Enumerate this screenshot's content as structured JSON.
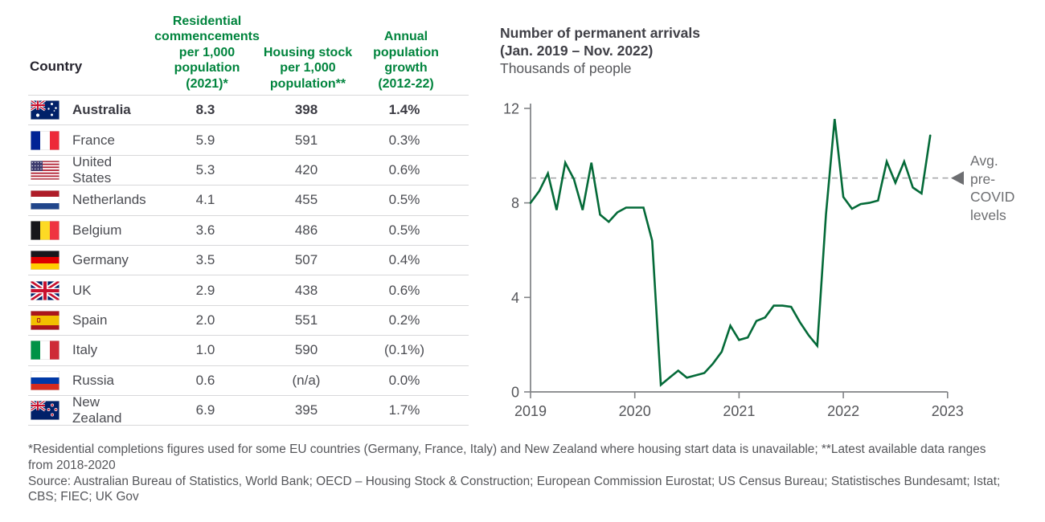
{
  "table": {
    "country_header": "Country",
    "col_headers": [
      "Residential\ncommencements\nper 1,000\npopulation (2021)*",
      "Housing stock\nper 1,000\npopulation**",
      "Annual\npopulation\ngrowth\n(2012-22)"
    ],
    "rows": [
      {
        "flag": "au",
        "country": "Australia",
        "commencements": "8.3",
        "stock": "398",
        "growth": "1.4%",
        "highlight": true
      },
      {
        "flag": "fr",
        "country": "France",
        "commencements": "5.9",
        "stock": "591",
        "growth": "0.3%"
      },
      {
        "flag": "us",
        "country": "United States",
        "commencements": "5.3",
        "stock": "420",
        "growth": "0.6%"
      },
      {
        "flag": "nl",
        "country": "Netherlands",
        "commencements": "4.1",
        "stock": "455",
        "growth": "0.5%"
      },
      {
        "flag": "be",
        "country": "Belgium",
        "commencements": "3.6",
        "stock": "486",
        "growth": "0.5%"
      },
      {
        "flag": "de",
        "country": "Germany",
        "commencements": "3.5",
        "stock": "507",
        "growth": "0.4%"
      },
      {
        "flag": "uk",
        "country": "UK",
        "commencements": "2.9",
        "stock": "438",
        "growth": "0.6%"
      },
      {
        "flag": "es",
        "country": "Spain",
        "commencements": "2.0",
        "stock": "551",
        "growth": "0.2%"
      },
      {
        "flag": "it",
        "country": "Italy",
        "commencements": "1.0",
        "stock": "590",
        "growth": "(0.1%)"
      },
      {
        "flag": "ru",
        "country": "Russia",
        "commencements": "0.6",
        "stock": "(n/a)",
        "growth": "0.0%"
      },
      {
        "flag": "nz",
        "country": "New Zealand",
        "commencements": "6.9",
        "stock": "395",
        "growth": "1.7%"
      }
    ]
  },
  "chart": {
    "title_line1": "Number of permanent arrivals",
    "title_line2": "(Jan. 2019 – Nov. 2022)",
    "subtitle": "Thousands of people",
    "annotation": "Avg.\npre-\nCOVID\nlevels"
  },
  "chart_data": {
    "type": "line",
    "title": "Number of permanent arrivals (Jan. 2019 – Nov. 2022)",
    "ylabel": "Thousands of people",
    "x_unit": "month",
    "x_monthly_start": "2019-01",
    "x_monthly_end": "2022-11",
    "x_tick_labels": [
      "2019",
      "2020",
      "2021",
      "2022",
      "2023"
    ],
    "y_ticks": [
      "0",
      "4",
      "8",
      "12"
    ],
    "ylim": [
      0,
      12
    ],
    "grid": false,
    "line_color": "#046A38",
    "series": [
      {
        "name": "Permanent arrivals (thousands of people)",
        "values": [
          8.0,
          8.5,
          9.25,
          7.7,
          9.7,
          9.0,
          7.7,
          9.7,
          7.5,
          7.2,
          7.6,
          7.8,
          7.8,
          7.8,
          6.4,
          0.3,
          0.6,
          0.9,
          0.6,
          0.7,
          0.8,
          1.2,
          1.7,
          2.8,
          2.2,
          2.3,
          3.0,
          3.15,
          3.65,
          3.65,
          3.6,
          2.95,
          2.4,
          1.95,
          7.5,
          11.55,
          8.25,
          7.75,
          7.95,
          8.0,
          8.1,
          9.75,
          8.85,
          9.75,
          8.65,
          8.4,
          10.85
        ]
      }
    ],
    "reference_line": {
      "label": "Avg. pre-COVID levels",
      "value": 9.05,
      "style": "dashed"
    }
  },
  "footnotes": {
    "notes": "*Residential completions figures used for some EU countries (Germany, France, Italy) and New Zealand where housing start data is unavailable; **Latest available data ranges from 2018-2020",
    "source": "Source: Australian Bureau of Statistics, World Bank; OECD – Housing Stock & Construction; European Commission Eurostat; US Census Bureau; Statistisches Bundesamt; Istat; CBS; FIEC; UK Gov"
  },
  "colors": {
    "header_green": "#00843D",
    "line_green": "#046A38",
    "axis_gray": "#808285",
    "annotation_gray": "#6D6E71",
    "text_gray": "#4B4C52"
  }
}
